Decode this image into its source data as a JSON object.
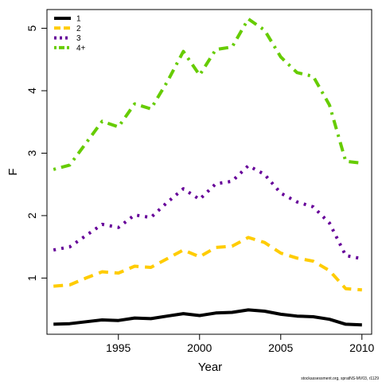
{
  "chart_data": {
    "type": "line",
    "xlabel": "Year",
    "ylabel": "F",
    "xlim": [
      1990.6,
      2010.6
    ],
    "ylim": [
      0.1,
      5.3
    ],
    "x_ticks": [
      1995,
      2000,
      2005,
      2010
    ],
    "y_ticks": [
      1,
      2,
      3,
      4,
      5
    ],
    "legend_position": "top-left",
    "grid": false,
    "x": [
      1991,
      1992,
      1993,
      1994,
      1995,
      1996,
      1997,
      1998,
      1999,
      2000,
      2001,
      2002,
      2003,
      2004,
      2005,
      2006,
      2007,
      2008,
      2009,
      2010
    ],
    "series": [
      {
        "name": "1",
        "color": "#000000",
        "dash": "solid",
        "values": [
          0.26,
          0.27,
          0.3,
          0.33,
          0.32,
          0.36,
          0.35,
          0.39,
          0.43,
          0.4,
          0.44,
          0.45,
          0.49,
          0.47,
          0.42,
          0.39,
          0.38,
          0.34,
          0.26,
          0.25
        ]
      },
      {
        "name": "2",
        "color": "#FFCC00",
        "dash": "dashed",
        "values": [
          0.87,
          0.89,
          1.0,
          1.1,
          1.08,
          1.19,
          1.17,
          1.31,
          1.45,
          1.34,
          1.49,
          1.51,
          1.65,
          1.57,
          1.4,
          1.32,
          1.27,
          1.12,
          0.83,
          0.81
        ]
      },
      {
        "name": "3",
        "color": "#660099",
        "dash": "dotted",
        "values": [
          1.45,
          1.5,
          1.68,
          1.86,
          1.81,
          2.01,
          1.97,
          2.21,
          2.43,
          2.26,
          2.51,
          2.55,
          2.8,
          2.66,
          2.36,
          2.22,
          2.14,
          1.88,
          1.36,
          1.31
        ]
      },
      {
        "name": "4+",
        "color": "#66CC00",
        "dash": "dotdash",
        "values": [
          2.74,
          2.81,
          3.16,
          3.51,
          3.42,
          3.79,
          3.71,
          4.14,
          4.63,
          4.25,
          4.66,
          4.7,
          5.15,
          4.97,
          4.54,
          4.29,
          4.23,
          3.77,
          2.87,
          2.84
        ]
      }
    ],
    "footnote": "stockassessment.org, spratNS-MV03, r1129"
  }
}
